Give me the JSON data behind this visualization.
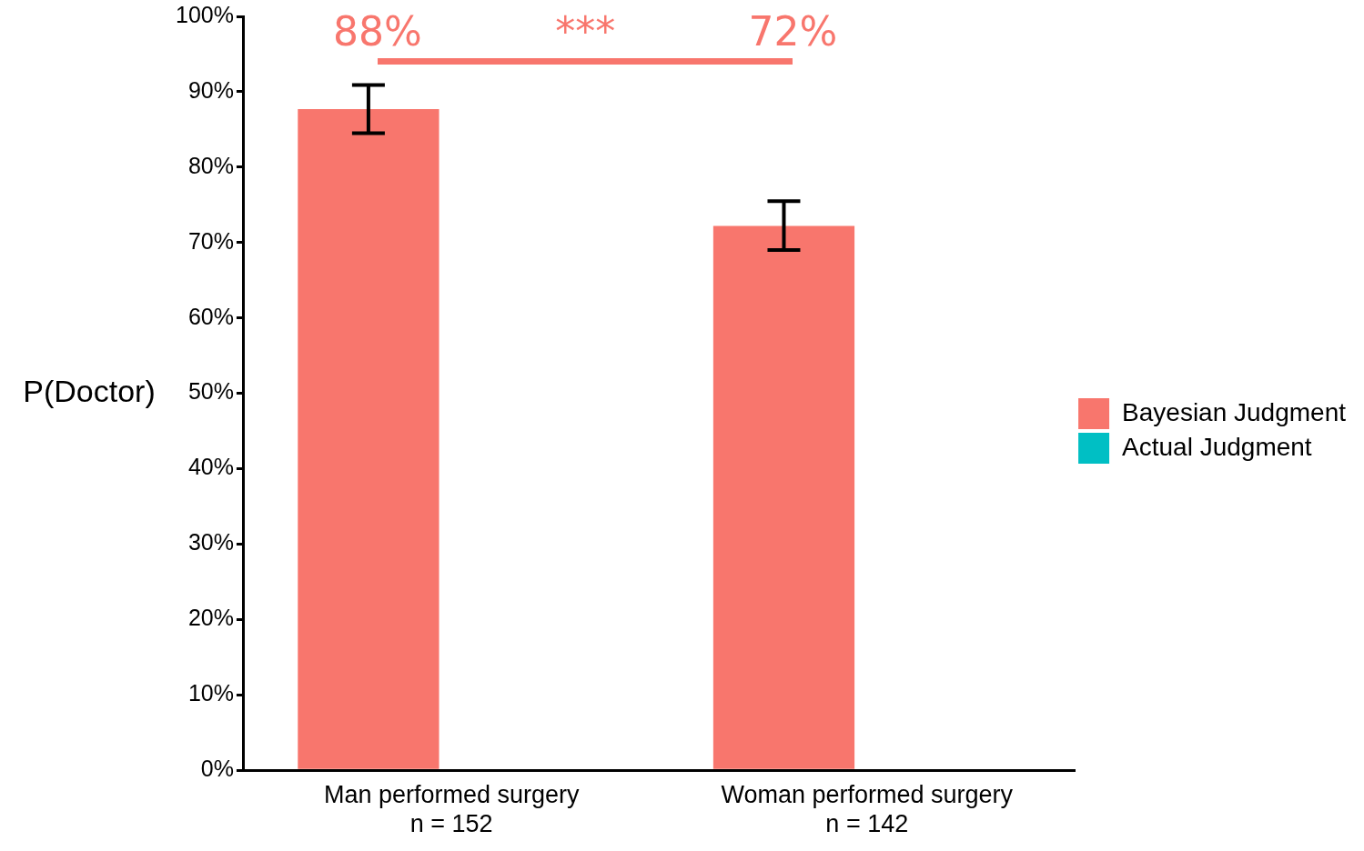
{
  "chart_data": {
    "type": "bar",
    "ylabel": "P(Doctor)",
    "categories": [
      "Man performed surgery\nn = 152",
      "Woman performed surgery\nn = 142"
    ],
    "series": [
      {
        "name": "Bayesian Judgment",
        "color": "#f8766d",
        "values": [
          87.7,
          72.2
        ],
        "errors": [
          [
            84.5,
            90.9
          ],
          [
            69.0,
            75.5
          ]
        ]
      },
      {
        "name": "Actual Judgment",
        "color": "#00bfc4",
        "values": [
          0,
          0
        ]
      }
    ],
    "ylim": [
      0,
      100
    ],
    "yticks": [
      {
        "value": 0,
        "label": "0%"
      },
      {
        "value": 10,
        "label": "10%"
      },
      {
        "value": 20,
        "label": "20%"
      },
      {
        "value": 30,
        "label": "30%"
      },
      {
        "value": 40,
        "label": "40%"
      },
      {
        "value": 50,
        "label": "50%"
      },
      {
        "value": 60,
        "label": "60%"
      },
      {
        "value": 70,
        "label": "70%"
      },
      {
        "value": 80,
        "label": "80%"
      },
      {
        "value": 90,
        "label": "90%"
      },
      {
        "value": 100,
        "label": "100%"
      }
    ],
    "annotations": [
      "88%",
      "***",
      "72%"
    ],
    "grid": false,
    "legend": "right"
  }
}
